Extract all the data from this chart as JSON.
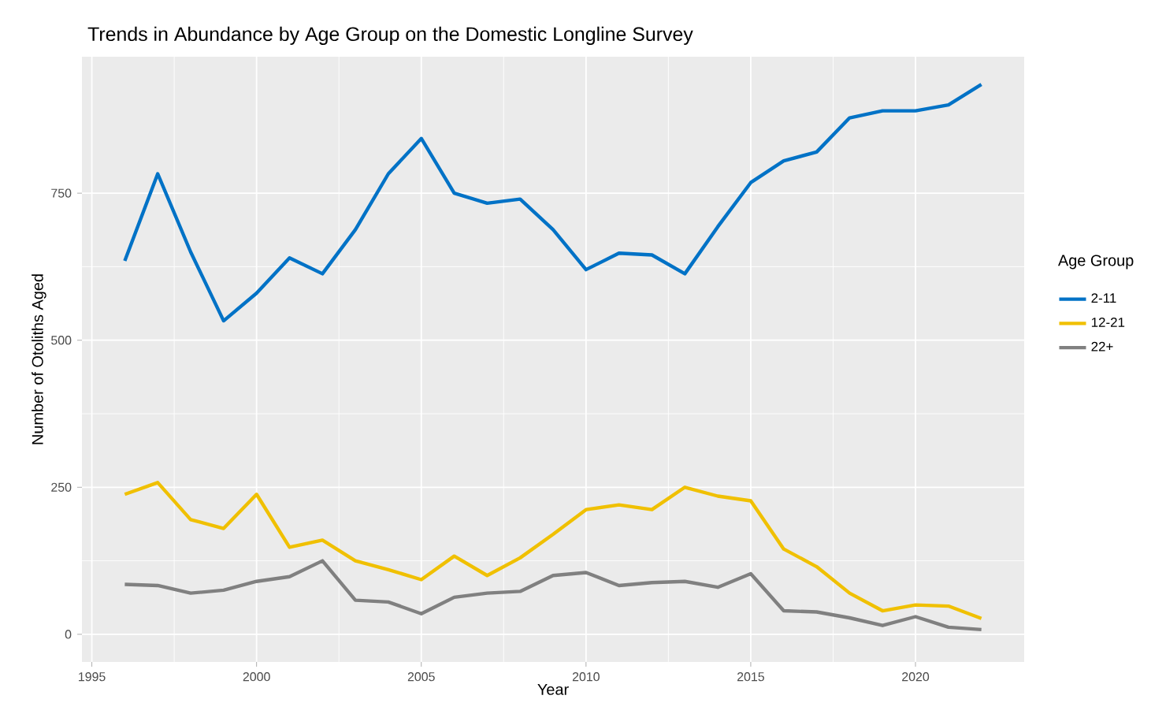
{
  "chart_data": {
    "type": "line",
    "title": "Trends in Abundance by Age Group on the Domestic Longline Survey",
    "xlabel": "Year",
    "ylabel": "Number of Otoliths Aged",
    "legend_title": "Age Group",
    "x": [
      1996,
      1997,
      1998,
      1999,
      2000,
      2001,
      2002,
      2003,
      2004,
      2005,
      2006,
      2007,
      2008,
      2009,
      2010,
      2011,
      2012,
      2013,
      2014,
      2015,
      2016,
      2017,
      2018,
      2019,
      2020,
      2021,
      2022
    ],
    "series": [
      {
        "name": "2-11",
        "color": "#0072c6",
        "values": [
          635,
          783,
          650,
          533,
          580,
          640,
          613,
          688,
          783,
          843,
          750,
          733,
          740,
          688,
          620,
          648,
          645,
          613,
          693,
          768,
          805,
          820,
          878,
          890,
          890,
          900,
          935
        ]
      },
      {
        "name": "12-21",
        "color": "#f0c000",
        "values": [
          238,
          258,
          195,
          180,
          238,
          148,
          160,
          125,
          110,
          93,
          133,
          100,
          130,
          170,
          212,
          220,
          212,
          250,
          235,
          227,
          145,
          115,
          70,
          40,
          50,
          48,
          27
        ]
      },
      {
        "name": "22+",
        "color": "#808080",
        "values": [
          85,
          83,
          70,
          75,
          90,
          98,
          125,
          58,
          55,
          35,
          63,
          70,
          73,
          100,
          105,
          83,
          88,
          90,
          80,
          103,
          40,
          38,
          28,
          15,
          30,
          12,
          8
        ]
      }
    ],
    "xlim": [
      1994.7,
      2023.3
    ],
    "ylim": [
      -47,
      982
    ],
    "xticks": [
      1995,
      2000,
      2005,
      2010,
      2015,
      2020
    ],
    "yticks": [
      0,
      250,
      500,
      750
    ],
    "grid": true,
    "legend": "right",
    "marker": "none",
    "line_style": "solid"
  }
}
